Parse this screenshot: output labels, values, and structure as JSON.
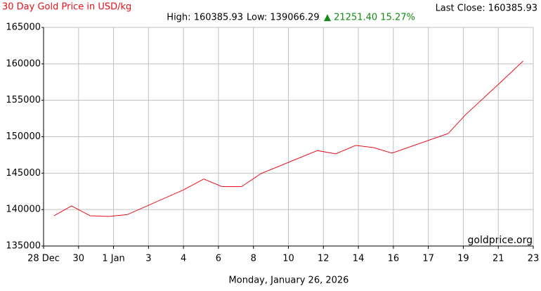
{
  "chart_data": {
    "type": "line",
    "title": "30 Day Gold Price in USD/kg",
    "last_close": "Last Close: 160385.93",
    "high": "High: 160385.93",
    "low": "Low: 139066.29",
    "change": "▲ 21251.40 15.27%",
    "watermark": "goldprice.org",
    "xlabel": "Monday, January 26, 2026",
    "x": [
      0.3,
      0.8,
      1.33,
      1.87,
      2.39,
      4.0,
      4.58,
      5.1,
      5.66,
      6.22,
      7.83,
      8.35,
      8.92,
      9.44,
      9.96,
      11.57,
      12.05,
      13.05,
      13.71
    ],
    "series": [
      {
        "color": "#e8101a",
        "values": [
          139150,
          140500,
          139150,
          139066.29,
          139300,
          142700,
          144200,
          143150,
          143150,
          144950,
          148100,
          147650,
          148800,
          148500,
          147750,
          150450,
          152950,
          157400,
          160385.93
        ]
      }
    ],
    "xlim": [
      0,
      14
    ],
    "xticks": [
      {
        "value": 0,
        "label": "28 Dec"
      },
      {
        "value": 1,
        "label": "30"
      },
      {
        "value": 2,
        "label": "1 Jan"
      },
      {
        "value": 3,
        "label": "3"
      },
      {
        "value": 4,
        "label": "4"
      },
      {
        "value": 5,
        "label": "6"
      },
      {
        "value": 6,
        "label": "8"
      },
      {
        "value": 7,
        "label": "10"
      },
      {
        "value": 8,
        "label": "12"
      },
      {
        "value": 9,
        "label": "14"
      },
      {
        "value": 10,
        "label": "16"
      },
      {
        "value": 11,
        "label": "17"
      },
      {
        "value": 12,
        "label": "19"
      },
      {
        "value": 13,
        "label": "21"
      },
      {
        "value": 14,
        "label": "23"
      }
    ],
    "ylim": [
      135000,
      165000
    ],
    "yticks": [
      135000,
      140000,
      145000,
      150000,
      155000,
      160000,
      165000
    ],
    "grid": true
  }
}
